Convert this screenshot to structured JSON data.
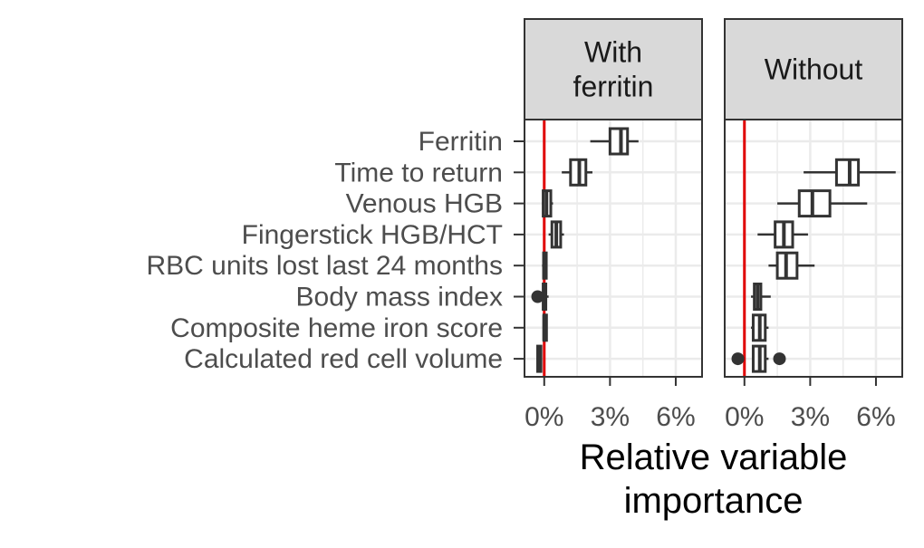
{
  "chart_data": {
    "type": "boxplot",
    "facets": [
      {
        "label_lines": [
          "With",
          "ferritin"
        ],
        "boxes": [
          {
            "category": "Ferritin",
            "whisker_low": 2.1,
            "q1": 3.0,
            "median": 3.5,
            "q3": 3.8,
            "whisker_high": 4.3,
            "outliers": []
          },
          {
            "category": "Time to return",
            "whisker_low": 0.8,
            "q1": 1.2,
            "median": 1.6,
            "q3": 1.9,
            "whisker_high": 2.2,
            "outliers": []
          },
          {
            "category": "Venous HGB",
            "whisker_low": -0.1,
            "q1": -0.05,
            "median": 0.1,
            "q3": 0.3,
            "whisker_high": 0.4,
            "outliers": []
          },
          {
            "category": "Fingerstick HGB/HCT",
            "whisker_low": 0.2,
            "q1": 0.35,
            "median": 0.55,
            "q3": 0.75,
            "whisker_high": 0.9,
            "outliers": []
          },
          {
            "category": "RBC units lost last 24 months",
            "whisker_low": -0.1,
            "q1": -0.03,
            "median": 0.0,
            "q3": 0.03,
            "whisker_high": 0.1,
            "outliers": []
          },
          {
            "category": "Body mass index",
            "whisker_low": -0.2,
            "q1": -0.05,
            "median": 0.0,
            "q3": 0.05,
            "whisker_high": 0.2,
            "outliers": [
              -0.3
            ]
          },
          {
            "category": "Composite heme iron score",
            "whisker_low": -0.05,
            "q1": -0.02,
            "median": 0.0,
            "q3": 0.02,
            "whisker_high": 0.05,
            "outliers": []
          },
          {
            "category": "Calculated red cell volume",
            "whisker_low": -0.35,
            "q1": -0.3,
            "median": -0.25,
            "q3": -0.15,
            "whisker_high": -0.1,
            "outliers": []
          }
        ]
      },
      {
        "label_lines": [
          "Without"
        ],
        "boxes": [
          {
            "category": "Ferritin",
            "whisker_low": null,
            "q1": null,
            "median": null,
            "q3": null,
            "whisker_high": null,
            "outliers": []
          },
          {
            "category": "Time to return",
            "whisker_low": 2.7,
            "q1": 4.2,
            "median": 4.8,
            "q3": 5.2,
            "whisker_high": 6.9,
            "outliers": []
          },
          {
            "category": "Venous HGB",
            "whisker_low": 1.5,
            "q1": 2.5,
            "median": 3.1,
            "q3": 3.9,
            "whisker_high": 5.6,
            "outliers": []
          },
          {
            "category": "Fingerstick HGB/HCT",
            "whisker_low": 0.6,
            "q1": 1.4,
            "median": 1.8,
            "q3": 2.2,
            "whisker_high": 2.9,
            "outliers": []
          },
          {
            "category": "RBC units lost last 24 months",
            "whisker_low": 1.1,
            "q1": 1.5,
            "median": 1.9,
            "q3": 2.4,
            "whisker_high": 3.2,
            "outliers": []
          },
          {
            "category": "Body mass index",
            "whisker_low": 0.3,
            "q1": 0.45,
            "median": 0.6,
            "q3": 0.75,
            "whisker_high": 1.2,
            "outliers": []
          },
          {
            "category": "Composite heme iron score",
            "whisker_low": 0.3,
            "q1": 0.4,
            "median": 0.7,
            "q3": 0.95,
            "whisker_high": 1.1,
            "outliers": []
          },
          {
            "category": "Calculated red cell volume",
            "whisker_low": 0.4,
            "q1": 0.4,
            "median": 0.7,
            "q3": 0.95,
            "whisker_high": 1.1,
            "outliers": [
              -0.3,
              1.6
            ]
          }
        ]
      }
    ],
    "categories": [
      "Ferritin",
      "Time to return",
      "Venous HGB",
      "Fingerstick HGB/HCT",
      "RBC units lost last 24 months",
      "Body mass index",
      "Composite heme iron score",
      "Calculated red cell volume"
    ],
    "x_ticks": [
      {
        "value": 0,
        "label": "0%"
      },
      {
        "value": 3,
        "label": "3%"
      },
      {
        "value": 6,
        "label": "6%"
      }
    ],
    "xlim": [
      -0.9,
      7.2
    ],
    "reference_line": {
      "value": 0,
      "color": "#e00000"
    },
    "xlabel_lines": [
      "Relative variable",
      "importance"
    ],
    "ylabel": "",
    "grid": true,
    "colors": {
      "box_stroke": "#333333",
      "box_fill": "#ffffff",
      "grid": "#ebebeb",
      "strip_fill": "#d9d9d9",
      "panel_border": "#333333"
    }
  }
}
